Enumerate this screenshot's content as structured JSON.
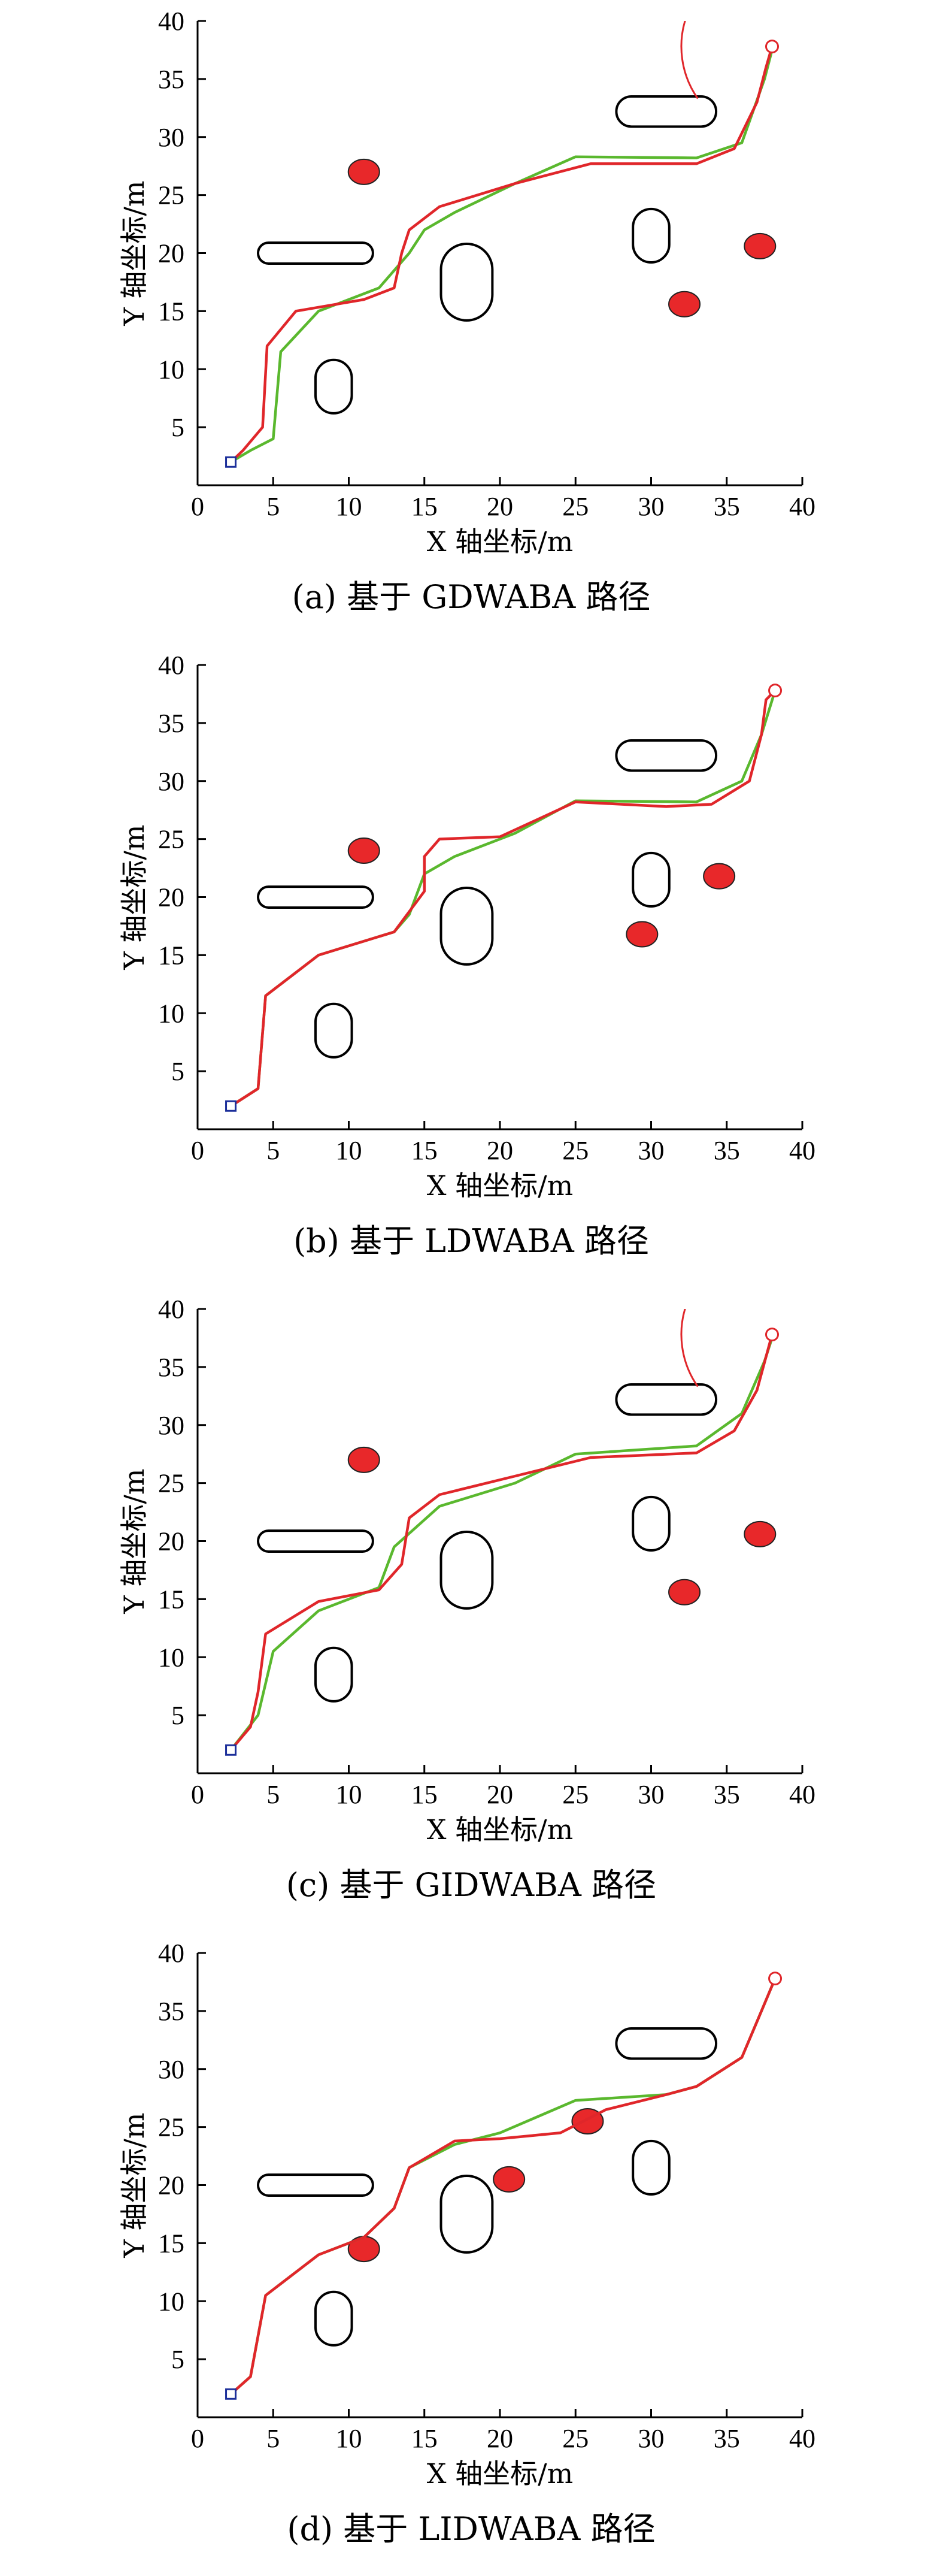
{
  "axes": {
    "xlabel": "X 轴坐标/m",
    "ylabel": "Y 轴坐标/m",
    "xlim": [
      0,
      40
    ],
    "ylim": [
      0,
      40
    ],
    "xticks": [
      0,
      5,
      10,
      15,
      20,
      25,
      30,
      35,
      40
    ],
    "yticks": [
      5,
      10,
      15,
      20,
      25,
      30,
      35,
      40
    ]
  },
  "colors": {
    "red_path": "#e0262a",
    "green_path": "#5ab82e",
    "obstacle_fill": "#e8282a",
    "static_obstacle": "#000000",
    "start_marker": "#1c2f9a",
    "goal_marker": "#e0262a"
  },
  "chart_data": [
    {
      "type": "line",
      "caption": "(a) 基于 GDWABA 路径",
      "xlim": [
        0,
        40
      ],
      "ylim": [
        0,
        40
      ],
      "start": [
        2.2,
        2.0
      ],
      "goal": [
        38.0,
        37.8
      ],
      "goal_circle": {
        "center": [
          38.0,
          37.8
        ],
        "radius": 6,
        "from_deg": 100,
        "to_deg": 215
      },
      "static_obstacles": [
        {
          "cx": 7.8,
          "cy": 20.0,
          "w": 7.6,
          "h": 1.8
        },
        {
          "cx": 9.0,
          "cy": 8.5,
          "w": 2.4,
          "h": 4.6
        },
        {
          "cx": 17.8,
          "cy": 17.5,
          "w": 3.4,
          "h": 6.6
        },
        {
          "cx": 31.0,
          "cy": 32.2,
          "w": 6.6,
          "h": 2.6
        },
        {
          "cx": 30.0,
          "cy": 21.5,
          "w": 2.4,
          "h": 4.6
        }
      ],
      "moving_obstacles": [
        {
          "cx": 11.0,
          "cy": 27.0
        },
        {
          "cx": 32.2,
          "cy": 15.6
        },
        {
          "cx": 37.2,
          "cy": 20.6
        }
      ],
      "series": [
        {
          "color": "green",
          "points": [
            [
              2.2,
              2
            ],
            [
              3.5,
              3
            ],
            [
              5,
              4
            ],
            [
              5.5,
              11.5
            ],
            [
              8,
              15
            ],
            [
              12,
              17
            ],
            [
              14,
              20
            ],
            [
              15,
              22
            ],
            [
              17,
              23.5
            ],
            [
              21,
              26
            ],
            [
              25,
              28.3
            ],
            [
              33,
              28.2
            ],
            [
              36,
              29.5
            ],
            [
              37.5,
              35
            ],
            [
              38,
              37.5
            ]
          ]
        },
        {
          "color": "red",
          "points": [
            [
              2.2,
              2
            ],
            [
              3,
              3
            ],
            [
              4.3,
              5
            ],
            [
              4.6,
              12
            ],
            [
              6.5,
              15
            ],
            [
              11,
              16
            ],
            [
              13,
              17
            ],
            [
              13.5,
              20
            ],
            [
              14,
              22
            ],
            [
              16,
              24
            ],
            [
              21,
              26
            ],
            [
              26,
              27.7
            ],
            [
              33,
              27.7
            ],
            [
              35.5,
              29
            ],
            [
              37,
              33
            ],
            [
              37.6,
              36
            ],
            [
              38,
              37.8
            ]
          ]
        }
      ]
    },
    {
      "type": "line",
      "caption": "(b) 基于 LDWABA 路径",
      "xlim": [
        0,
        40
      ],
      "ylim": [
        0,
        40
      ],
      "start": [
        2.2,
        2.0
      ],
      "goal": [
        38.2,
        37.8
      ],
      "static_obstacles": [
        {
          "cx": 7.8,
          "cy": 20.0,
          "w": 7.6,
          "h": 1.8
        },
        {
          "cx": 9.0,
          "cy": 8.5,
          "w": 2.4,
          "h": 4.6
        },
        {
          "cx": 17.8,
          "cy": 17.5,
          "w": 3.4,
          "h": 6.6
        },
        {
          "cx": 31.0,
          "cy": 32.2,
          "w": 6.6,
          "h": 2.6
        },
        {
          "cx": 30.0,
          "cy": 21.5,
          "w": 2.4,
          "h": 4.6
        }
      ],
      "moving_obstacles": [
        {
          "cx": 11.0,
          "cy": 24.0
        },
        {
          "cx": 29.4,
          "cy": 16.8
        },
        {
          "cx": 34.5,
          "cy": 21.8
        }
      ],
      "series": [
        {
          "color": "green",
          "points": [
            [
              2.2,
              2
            ],
            [
              4,
              3.5
            ],
            [
              4.5,
              11.5
            ],
            [
              8,
              15
            ],
            [
              13,
              17
            ],
            [
              14,
              18.5
            ],
            [
              15,
              22
            ],
            [
              17,
              23.5
            ],
            [
              21,
              25.5
            ],
            [
              25,
              28.3
            ],
            [
              33,
              28.2
            ],
            [
              36,
              30
            ],
            [
              37.3,
              34
            ],
            [
              38.2,
              37.8
            ]
          ]
        },
        {
          "color": "red",
          "points": [
            [
              2.2,
              2
            ],
            [
              4,
              3.5
            ],
            [
              4.5,
              11.5
            ],
            [
              8,
              15
            ],
            [
              13,
              17
            ],
            [
              15,
              20.5
            ],
            [
              15,
              23.5
            ],
            [
              16,
              25
            ],
            [
              20,
              25.2
            ],
            [
              25,
              28.2
            ],
            [
              31,
              27.8
            ],
            [
              34,
              28
            ],
            [
              36.5,
              30
            ],
            [
              37.3,
              34
            ],
            [
              37.6,
              37
            ],
            [
              38.2,
              37.8
            ]
          ]
        }
      ]
    },
    {
      "type": "line",
      "caption": "(c) 基于 GIDWABA 路径",
      "xlim": [
        0,
        40
      ],
      "ylim": [
        0,
        40
      ],
      "start": [
        2.2,
        2.0
      ],
      "goal": [
        38.0,
        37.8
      ],
      "goal_circle": {
        "center": [
          38.0,
          37.8
        ],
        "radius": 6,
        "from_deg": 100,
        "to_deg": 215
      },
      "static_obstacles": [
        {
          "cx": 7.8,
          "cy": 20.0,
          "w": 7.6,
          "h": 1.8
        },
        {
          "cx": 9.0,
          "cy": 8.5,
          "w": 2.4,
          "h": 4.6
        },
        {
          "cx": 17.8,
          "cy": 17.5,
          "w": 3.4,
          "h": 6.6
        },
        {
          "cx": 31.0,
          "cy": 32.2,
          "w": 6.6,
          "h": 2.6
        },
        {
          "cx": 30.0,
          "cy": 21.5,
          "w": 2.4,
          "h": 4.6
        }
      ],
      "moving_obstacles": [
        {
          "cx": 11.0,
          "cy": 27.0
        },
        {
          "cx": 32.2,
          "cy": 15.6
        },
        {
          "cx": 37.2,
          "cy": 20.6
        }
      ],
      "series": [
        {
          "color": "green",
          "points": [
            [
              2.2,
              2
            ],
            [
              4,
              5
            ],
            [
              5,
              10.5
            ],
            [
              8,
              14
            ],
            [
              12,
              16
            ],
            [
              13,
              19.5
            ],
            [
              16,
              23
            ],
            [
              21,
              25
            ],
            [
              25,
              27.5
            ],
            [
              33,
              28.2
            ],
            [
              36,
              31
            ],
            [
              37.5,
              35.5
            ],
            [
              38,
              37.5
            ]
          ]
        },
        {
          "color": "red",
          "points": [
            [
              2.2,
              2
            ],
            [
              3.5,
              4
            ],
            [
              4,
              7
            ],
            [
              4.5,
              12
            ],
            [
              8,
              14.8
            ],
            [
              12,
              15.8
            ],
            [
              13.5,
              18
            ],
            [
              14,
              22
            ],
            [
              16,
              24
            ],
            [
              21,
              25.6
            ],
            [
              26,
              27.2
            ],
            [
              33,
              27.6
            ],
            [
              35.5,
              29.5
            ],
            [
              37,
              33
            ],
            [
              38,
              37.8
            ]
          ]
        }
      ]
    },
    {
      "type": "line",
      "caption": "(d) 基于 LIDWABA 路径",
      "xlim": [
        0,
        40
      ],
      "ylim": [
        0,
        40
      ],
      "start": [
        2.2,
        2.0
      ],
      "goal": [
        38.2,
        37.8
      ],
      "static_obstacles": [
        {
          "cx": 7.8,
          "cy": 20.0,
          "w": 7.6,
          "h": 1.8
        },
        {
          "cx": 9.0,
          "cy": 8.5,
          "w": 2.4,
          "h": 4.6
        },
        {
          "cx": 17.8,
          "cy": 17.5,
          "w": 3.4,
          "h": 6.6
        },
        {
          "cx": 31.0,
          "cy": 32.2,
          "w": 6.6,
          "h": 2.6
        },
        {
          "cx": 30.0,
          "cy": 21.5,
          "w": 2.4,
          "h": 4.6
        }
      ],
      "moving_obstacles": [
        {
          "cx": 11.0,
          "cy": 14.5
        },
        {
          "cx": 20.6,
          "cy": 20.5
        },
        {
          "cx": 25.8,
          "cy": 25.5
        }
      ],
      "series": [
        {
          "color": "green",
          "points": [
            [
              2.2,
              2
            ],
            [
              3.5,
              3.5
            ],
            [
              4.5,
              10.5
            ],
            [
              8,
              14
            ],
            [
              11,
              15.5
            ],
            [
              13,
              18
            ],
            [
              14,
              21.5
            ],
            [
              17,
              23.5
            ],
            [
              20,
              24.5
            ],
            [
              25,
              27.3
            ],
            [
              31,
              27.8
            ],
            [
              33,
              28.5
            ],
            [
              36,
              31
            ],
            [
              37.3,
              35
            ],
            [
              38.2,
              37.8
            ]
          ]
        },
        {
          "color": "red",
          "points": [
            [
              2.2,
              2
            ],
            [
              3.5,
              3.5
            ],
            [
              4.5,
              10.5
            ],
            [
              8,
              14
            ],
            [
              11,
              15.5
            ],
            [
              13,
              18
            ],
            [
              14,
              21.5
            ],
            [
              17,
              23.8
            ],
            [
              20,
              24
            ],
            [
              24,
              24.5
            ],
            [
              27,
              26.5
            ],
            [
              31,
              27.8
            ],
            [
              33,
              28.5
            ],
            [
              36,
              31
            ],
            [
              37.3,
              35
            ],
            [
              38.2,
              37.8
            ]
          ]
        }
      ]
    }
  ]
}
